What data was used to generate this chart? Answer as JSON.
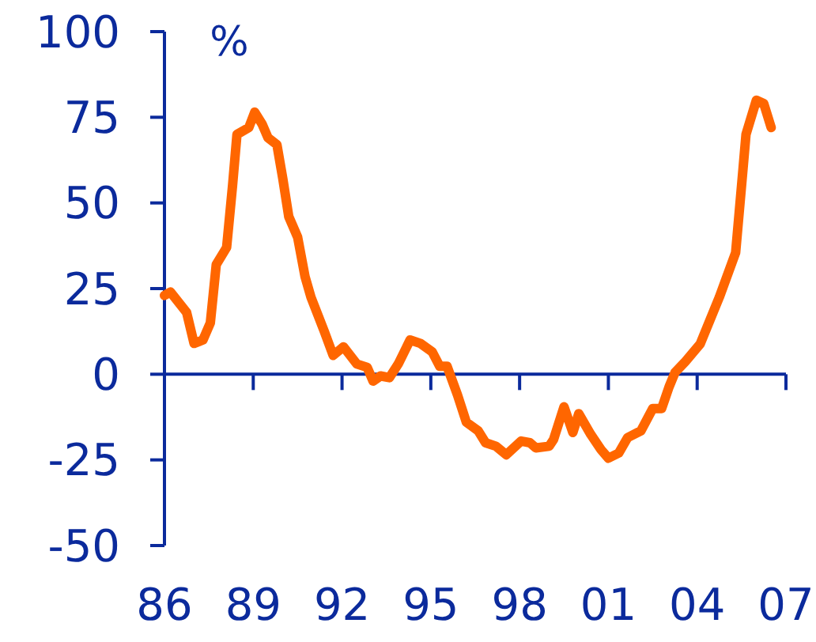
{
  "chart_data": {
    "type": "line",
    "ylabel": "%",
    "x": [
      1986,
      1986.2,
      1986.75,
      1987,
      1987.3,
      1987.55,
      1987.75,
      1988.1,
      1988.3,
      1988.45,
      1988.85,
      1989.05,
      1989.3,
      1989.5,
      1989.8,
      1990,
      1990.2,
      1990.5,
      1990.75,
      1990.95,
      1991.4,
      1991.7,
      1992.05,
      1992.5,
      1992.85,
      1993.05,
      1993.3,
      1993.6,
      1993.9,
      1994.3,
      1994.65,
      1995.05,
      1995.3,
      1995.55,
      1995.9,
      1996.2,
      1996.6,
      1996.85,
      1997.2,
      1997.55,
      1998.05,
      1998.35,
      1998.55,
      1999,
      1999.15,
      1999.5,
      1999.8,
      2000,
      2000.4,
      2000.75,
      2001,
      2001.35,
      2001.65,
      2002.1,
      2002.5,
      2002.8,
      2003.05,
      2003.25,
      2003.6,
      2004.1,
      2004.75,
      2005.3,
      2005.55,
      2005.65,
      2006,
      2006.25,
      2006.5
    ],
    "series": [
      {
        "color": "#ff6600",
        "values": [
          23,
          24,
          18,
          9,
          10,
          15,
          32,
          37,
          55,
          70,
          72,
          76.5,
          73,
          69,
          67,
          57,
          46,
          40,
          28.5,
          22.5,
          12.5,
          5.5,
          8,
          3,
          2,
          -2,
          -0.5,
          -1,
          3,
          10,
          9,
          6.5,
          2.3,
          2.3,
          -6,
          -14,
          -16.5,
          -20,
          -21,
          -23.5,
          -19.5,
          -20,
          -21.5,
          -21,
          -19,
          -9.5,
          -17,
          -11.5,
          -17.5,
          -22,
          -24.5,
          -23,
          -18.5,
          -16.5,
          -10,
          -10,
          -3.7,
          0.5,
          3.7,
          8.8,
          22.5,
          35.5,
          60,
          70,
          80,
          79,
          72
        ]
      }
    ],
    "xlim": [
      1986,
      2007
    ],
    "ylim": [
      -50,
      100
    ],
    "xticks": [
      {
        "value": 1986,
        "label": "86"
      },
      {
        "value": 1989,
        "label": "89"
      },
      {
        "value": 1992,
        "label": "92"
      },
      {
        "value": 1995,
        "label": "95"
      },
      {
        "value": 1998,
        "label": "98"
      },
      {
        "value": 2001,
        "label": "01"
      },
      {
        "value": 2004,
        "label": "04"
      },
      {
        "value": 2007,
        "label": "07"
      }
    ],
    "yticks": [
      -50,
      -25,
      0,
      25,
      50,
      75,
      100
    ],
    "ref_lines": [
      {
        "axis": "y",
        "value": 0,
        "color": "#0b2a9c"
      }
    ],
    "grid": false,
    "marker": "none",
    "line_style": "solid"
  }
}
